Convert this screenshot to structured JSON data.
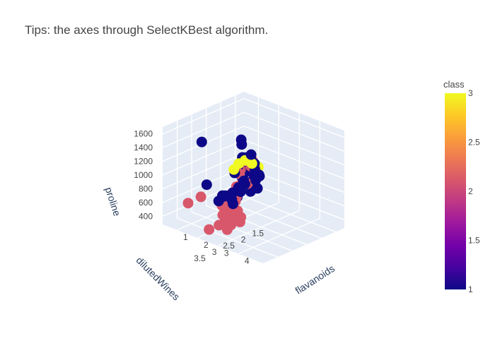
{
  "title": "Tips: the axes through SelectKBest algorithm.",
  "colors": {
    "pane": "#e5ecf6",
    "grid": "#ffffff",
    "class1": "#0d0887",
    "class2": "#cc4778",
    "class3": "#f0f921"
  },
  "chart_data": {
    "type": "scatter3d",
    "title": "Tips: the axes through SelectKBest algorithm.",
    "axes": {
      "x": {
        "title": "flavanoids",
        "range": [
          0.3,
          5.2
        ],
        "ticks": [
          "1",
          "2",
          "3",
          "4"
        ]
      },
      "y": {
        "title": "dilutedWines",
        "range": [
          1.2,
          4.0
        ],
        "ticks": [
          "1.5",
          "2",
          "2.5",
          "3",
          "3.5"
        ]
      },
      "z": {
        "title": "proline",
        "range": [
          280,
          1700
        ],
        "ticks": [
          "400",
          "600",
          "800",
          "1000",
          "1200",
          "1400",
          "1600"
        ]
      }
    },
    "colorbar": {
      "title": "class",
      "range": [
        1,
        3
      ],
      "ticks": [
        "1",
        "1.5",
        "2",
        "2.5",
        "3"
      ],
      "colorscale": [
        "#0d0887",
        "#46039f",
        "#7201a8",
        "#9c179e",
        "#bd3786",
        "#d8576b",
        "#ed7953",
        "#fb9f3a",
        "#fdca26",
        "#f0f921"
      ]
    },
    "series": [
      {
        "class": 1,
        "color": "#0d0887",
        "points": [
          {
            "x": 3.0,
            "y": 3.2,
            "z": 1680
          },
          {
            "x": 3.2,
            "y": 3.0,
            "z": 1450
          },
          {
            "x": 2.6,
            "y": 2.9,
            "z": 1510
          },
          {
            "x": 2.7,
            "y": 2.7,
            "z": 1290
          },
          {
            "x": 2.9,
            "y": 2.8,
            "z": 1320
          },
          {
            "x": 2.5,
            "y": 2.7,
            "z": 1270
          },
          {
            "x": 2.8,
            "y": 2.6,
            "z": 1200
          },
          {
            "x": 3.1,
            "y": 2.8,
            "z": 1190
          },
          {
            "x": 2.4,
            "y": 3.0,
            "z": 1090
          },
          {
            "x": 2.2,
            "y": 2.6,
            "z": 1050
          },
          {
            "x": 2.3,
            "y": 2.5,
            "z": 1080
          },
          {
            "x": 2.6,
            "y": 2.6,
            "z": 1060
          },
          {
            "x": 2.9,
            "y": 2.5,
            "z": 1010
          },
          {
            "x": 3.3,
            "y": 2.8,
            "z": 1130
          },
          {
            "x": 2.9,
            "y": 3.0,
            "z": 985
          },
          {
            "x": 2.7,
            "y": 2.9,
            "z": 990
          },
          {
            "x": 3.0,
            "y": 2.7,
            "z": 1000
          },
          {
            "x": 2.5,
            "y": 2.8,
            "z": 1005
          },
          {
            "x": 2.4,
            "y": 2.9,
            "z": 1150
          },
          {
            "x": 2.2,
            "y": 2.6,
            "z": 1220
          },
          {
            "x": 2.3,
            "y": 2.5,
            "z": 1045
          },
          {
            "x": 2.1,
            "y": 2.5,
            "z": 930
          },
          {
            "x": 2.2,
            "y": 2.6,
            "z": 920
          },
          {
            "x": 2.4,
            "y": 2.7,
            "z": 900
          },
          {
            "x": 2.5,
            "y": 2.5,
            "z": 880
          },
          {
            "x": 2.3,
            "y": 2.8,
            "z": 830
          },
          {
            "x": 2.2,
            "y": 2.9,
            "z": 760
          },
          {
            "x": 2.4,
            "y": 2.8,
            "z": 780
          },
          {
            "x": 2.3,
            "y": 3.0,
            "z": 790
          },
          {
            "x": 2.1,
            "y": 3.1,
            "z": 740
          },
          {
            "x": 2.6,
            "y": 2.6,
            "z": 770
          },
          {
            "x": 2.8,
            "y": 2.5,
            "z": 820
          },
          {
            "x": 2.0,
            "y": 2.7,
            "z": 600
          },
          {
            "x": 2.1,
            "y": 2.7,
            "z": 650
          },
          {
            "x": 1.9,
            "y": 2.9,
            "z": 550
          },
          {
            "x": 1.8,
            "y": 2.8,
            "z": 610
          },
          {
            "x": 2.6,
            "y": 3.2,
            "z": 700
          },
          {
            "x": 2.4,
            "y": 3.1,
            "z": 720
          },
          {
            "x": 1.5,
            "y": 3.5,
            "z": 1530
          },
          {
            "x": 1.6,
            "y": 3.4,
            "z": 900
          },
          {
            "x": 2.0,
            "y": 3.1,
            "z": 720
          },
          {
            "x": 1.9,
            "y": 3.0,
            "z": 700
          },
          {
            "x": 1.8,
            "y": 3.0,
            "z": 690
          },
          {
            "x": 1.9,
            "y": 3.2,
            "z": 660
          },
          {
            "x": 2.7,
            "y": 2.6,
            "z": 1050
          }
        ]
      },
      {
        "class": 2,
        "color": "#cc4778",
        "points": [
          {
            "x": 2.8,
            "y": 2.7,
            "z": 1180
          },
          {
            "x": 2.7,
            "y": 2.6,
            "z": 1230
          },
          {
            "x": 2.9,
            "y": 2.8,
            "z": 1210
          },
          {
            "x": 2.5,
            "y": 2.9,
            "z": 1070
          },
          {
            "x": 2.4,
            "y": 2.8,
            "z": 1100
          },
          {
            "x": 2.6,
            "y": 2.7,
            "z": 900
          },
          {
            "x": 2.3,
            "y": 2.7,
            "z": 860
          },
          {
            "x": 2.2,
            "y": 2.8,
            "z": 830
          },
          {
            "x": 2.1,
            "y": 2.8,
            "z": 720
          },
          {
            "x": 2.0,
            "y": 2.9,
            "z": 700
          },
          {
            "x": 2.0,
            "y": 3.0,
            "z": 680
          },
          {
            "x": 1.9,
            "y": 2.9,
            "z": 620
          },
          {
            "x": 1.8,
            "y": 3.0,
            "z": 540
          },
          {
            "x": 2.0,
            "y": 3.0,
            "z": 510
          },
          {
            "x": 2.2,
            "y": 3.1,
            "z": 530
          },
          {
            "x": 2.1,
            "y": 3.2,
            "z": 480
          },
          {
            "x": 2.3,
            "y": 3.0,
            "z": 460
          },
          {
            "x": 2.4,
            "y": 3.1,
            "z": 430
          },
          {
            "x": 2.3,
            "y": 3.3,
            "z": 400
          },
          {
            "x": 2.2,
            "y": 3.4,
            "z": 380
          },
          {
            "x": 2.5,
            "y": 3.2,
            "z": 380
          },
          {
            "x": 2.0,
            "y": 3.6,
            "z": 330
          },
          {
            "x": 2.6,
            "y": 3.0,
            "z": 420
          },
          {
            "x": 2.1,
            "y": 2.9,
            "z": 560
          },
          {
            "x": 1.9,
            "y": 3.1,
            "z": 590
          },
          {
            "x": 2.7,
            "y": 3.0,
            "z": 480
          },
          {
            "x": 2.4,
            "y": 2.9,
            "z": 520
          },
          {
            "x": 2.2,
            "y": 3.0,
            "z": 580
          },
          {
            "x": 2.5,
            "y": 3.3,
            "z": 480
          },
          {
            "x": 1.6,
            "y": 3.6,
            "z": 760
          },
          {
            "x": 1.4,
            "y": 3.9,
            "z": 700
          },
          {
            "x": 2.6,
            "y": 3.4,
            "z": 360
          },
          {
            "x": 2.8,
            "y": 3.1,
            "z": 440
          },
          {
            "x": 2.3,
            "y": 2.9,
            "z": 650
          },
          {
            "x": 2.2,
            "y": 2.8,
            "z": 680
          }
        ]
      },
      {
        "class": 3,
        "color": "#f0f921",
        "points": [
          {
            "x": 3.1,
            "y": 2.9,
            "z": 1290
          },
          {
            "x": 2.9,
            "y": 3.0,
            "z": 1330
          },
          {
            "x": 2.6,
            "y": 3.0,
            "z": 1250
          },
          {
            "x": 2.5,
            "y": 3.1,
            "z": 1170
          },
          {
            "x": 2.7,
            "y": 2.4,
            "z": 1100
          }
        ]
      }
    ]
  }
}
